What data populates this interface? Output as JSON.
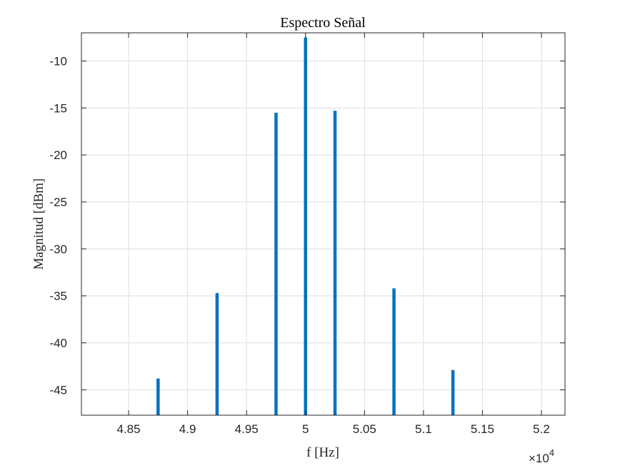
{
  "chart_data": {
    "type": "bar",
    "title": "Espectro Señal",
    "xlabel": "f [Hz]",
    "ylabel": "Magnitud [dBm]",
    "x_multiplier_label": "×10",
    "x_multiplier_exponent": "4",
    "xlim": [
      48100,
      52200
    ],
    "ylim": [
      -47.7,
      -7.0
    ],
    "xticks": [
      48500,
      49000,
      49500,
      50000,
      50500,
      51000,
      51500,
      52000
    ],
    "xtick_labels": [
      "4.85",
      "4.9",
      "4.95",
      "5",
      "5.05",
      "5.1",
      "5.15",
      "5.2"
    ],
    "yticks": [
      -45,
      -40,
      -35,
      -30,
      -25,
      -20,
      -15,
      -10
    ],
    "ytick_labels": [
      "-45",
      "-40",
      "-35",
      "-30",
      "-25",
      "-20",
      "-15",
      "-10"
    ],
    "grid": true,
    "legend": "none",
    "series": [
      {
        "x": [
          48750,
          49250,
          49750,
          50000,
          50250,
          50750,
          51250
        ],
        "values": [
          -43.8,
          -34.7,
          -15.5,
          -7.5,
          -15.3,
          -34.2,
          -42.9
        ],
        "color": "#0072BD"
      }
    ]
  }
}
